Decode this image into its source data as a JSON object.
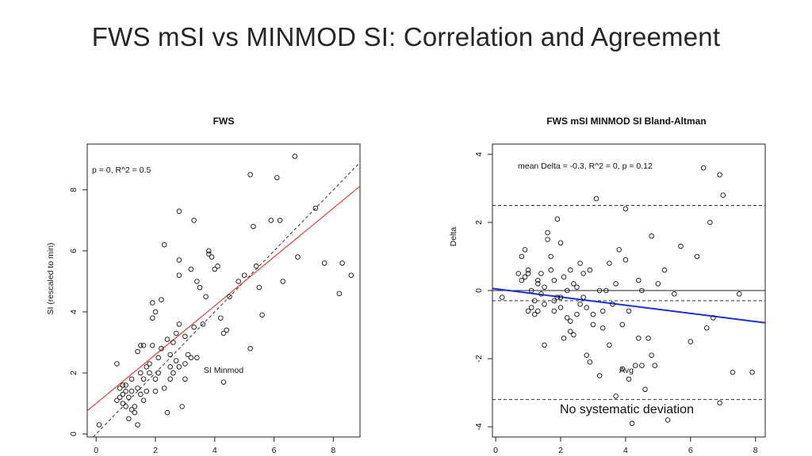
{
  "slide": {
    "title": "FWS mSI vs MINMOD SI: Correlation and Agreement",
    "caption": "No systematic deviation"
  },
  "colors": {
    "regression_line": "#e8413c",
    "identity_line": "#333333",
    "trend_line": "#1f2fd6",
    "points": "#111111"
  },
  "chart_data": [
    {
      "type": "scatter",
      "title": "FWS",
      "xlabel": "SI Minmod",
      "ylabel": "SI (rescaled to min)",
      "annotation": "p = 0, R^2 = 0.5",
      "xlim": [
        -0.3,
        8.9
      ],
      "ylim": [
        -0.1,
        9.5
      ],
      "xticks": [
        "0",
        "2",
        "4",
        "6",
        "8"
      ],
      "yticks": [
        "0",
        "2",
        "4",
        "6",
        "8"
      ],
      "regression_line": {
        "intercept": 1.0,
        "slope": 0.8
      },
      "identity_line": {
        "intercept": 0,
        "slope": 1
      },
      "points": [
        [
          0.1,
          0.3
        ],
        [
          0.7,
          2.3
        ],
        [
          0.7,
          1.1
        ],
        [
          0.8,
          1.2
        ],
        [
          0.8,
          1.5
        ],
        [
          0.9,
          1.3
        ],
        [
          0.9,
          1.0
        ],
        [
          1.0,
          1.4
        ],
        [
          1.0,
          1.6
        ],
        [
          0.9,
          1.6
        ],
        [
          1.1,
          0.5
        ],
        [
          1.1,
          1.2
        ],
        [
          1.2,
          0.8
        ],
        [
          1.2,
          1.4
        ],
        [
          1.3,
          0.9
        ],
        [
          1.3,
          0.7
        ],
        [
          1.4,
          1.5
        ],
        [
          1.4,
          2.7
        ],
        [
          1.4,
          0.3
        ],
        [
          1.5,
          2.9
        ],
        [
          1.5,
          1.3
        ],
        [
          1.6,
          1.8
        ],
        [
          1.6,
          2.9
        ],
        [
          1.6,
          1.1
        ],
        [
          1.7,
          1.4
        ],
        [
          1.7,
          2.2
        ],
        [
          1.8,
          2.0
        ],
        [
          1.8,
          2.3
        ],
        [
          1.9,
          3.8
        ],
        [
          1.9,
          4.3
        ],
        [
          1.9,
          2.9
        ],
        [
          2.0,
          4.0
        ],
        [
          2.0,
          1.4
        ],
        [
          2.1,
          2.5
        ],
        [
          2.1,
          2.0
        ],
        [
          2.2,
          2.8
        ],
        [
          2.2,
          4.4
        ],
        [
          2.3,
          6.2
        ],
        [
          2.3,
          1.5
        ],
        [
          2.4,
          3.1
        ],
        [
          2.4,
          0.7
        ],
        [
          2.5,
          2.2
        ],
        [
          2.5,
          1.8
        ],
        [
          2.6,
          3.0
        ],
        [
          2.7,
          3.3
        ],
        [
          2.7,
          2.4
        ],
        [
          2.8,
          5.2
        ],
        [
          2.8,
          5.7
        ],
        [
          2.8,
          3.6
        ],
        [
          2.8,
          7.3
        ],
        [
          2.9,
          0.9
        ],
        [
          3.0,
          2.3
        ],
        [
          3.0,
          3.2
        ],
        [
          3.1,
          2.6
        ],
        [
          3.2,
          2.5
        ],
        [
          3.2,
          5.4
        ],
        [
          3.3,
          3.5
        ],
        [
          3.3,
          7.0
        ],
        [
          3.4,
          5.0
        ],
        [
          3.4,
          2.5
        ],
        [
          3.5,
          4.8
        ],
        [
          3.6,
          3.6
        ],
        [
          3.7,
          4.5
        ],
        [
          3.8,
          5.9
        ],
        [
          3.8,
          6.0
        ],
        [
          3.9,
          5.8
        ],
        [
          4.0,
          5.4
        ],
        [
          4.1,
          5.5
        ],
        [
          4.2,
          3.8
        ],
        [
          4.3,
          3.3
        ],
        [
          4.3,
          1.7
        ],
        [
          4.4,
          3.4
        ],
        [
          4.5,
          4.5
        ],
        [
          4.8,
          5.0
        ],
        [
          5.0,
          5.2
        ],
        [
          5.2,
          8.5
        ],
        [
          5.3,
          6.8
        ],
        [
          5.4,
          5.5
        ],
        [
          5.5,
          4.8
        ],
        [
          5.6,
          3.9
        ],
        [
          5.2,
          2.8
        ],
        [
          5.9,
          7.0
        ],
        [
          6.1,
          8.4
        ],
        [
          6.2,
          7.0
        ],
        [
          6.3,
          5.0
        ],
        [
          6.7,
          9.1
        ],
        [
          6.8,
          5.8
        ],
        [
          7.4,
          7.4
        ],
        [
          7.7,
          5.6
        ],
        [
          8.2,
          4.6
        ],
        [
          8.3,
          5.6
        ],
        [
          8.6,
          5.2
        ],
        [
          2.0,
          1.8
        ],
        [
          1.5,
          2.0
        ],
        [
          2.6,
          2.0
        ],
        [
          3.0,
          1.8
        ],
        [
          1.0,
          0.9
        ],
        [
          1.2,
          1.8
        ],
        [
          2.5,
          2.6
        ],
        [
          2.8,
          2.2
        ]
      ]
    },
    {
      "type": "scatter",
      "title": "FWS mSI MINMOD SI Bland-Altman",
      "xlabel": "Avg",
      "ylabel": "Delta",
      "annotation": "mean Delta = -0.3, R^2 = 0, p = 0.12",
      "xlim": [
        -0.1,
        8.3
      ],
      "ylim": [
        -4.3,
        4.3
      ],
      "xticks": [
        "0",
        "2",
        "4",
        "6",
        "8"
      ],
      "yticks": [
        "-4",
        "-2",
        "0",
        "2",
        "4"
      ],
      "zero_line": 0,
      "mean_delta": -0.3,
      "limits_of_agreement": [
        2.5,
        -3.2
      ],
      "trend_line": {
        "intercept": 0.05,
        "slope": -0.12
      },
      "points": [
        [
          0.2,
          -0.2
        ],
        [
          0.7,
          0.5
        ],
        [
          0.8,
          1.0
        ],
        [
          0.8,
          0.3
        ],
        [
          0.9,
          1.2
        ],
        [
          0.9,
          0.4
        ],
        [
          1.0,
          -0.6
        ],
        [
          1.0,
          0.5
        ],
        [
          1.1,
          -0.5
        ],
        [
          1.1,
          0.0
        ],
        [
          1.2,
          -0.7
        ],
        [
          1.2,
          -0.3
        ],
        [
          1.3,
          0.3
        ],
        [
          1.3,
          -0.6
        ],
        [
          1.4,
          -0.1
        ],
        [
          1.4,
          0.5
        ],
        [
          1.5,
          -1.6
        ],
        [
          1.5,
          0.1
        ],
        [
          1.6,
          1.7
        ],
        [
          1.6,
          1.5
        ],
        [
          1.7,
          1.0
        ],
        [
          1.7,
          0.6
        ],
        [
          1.8,
          -0.6
        ],
        [
          1.8,
          0.3
        ],
        [
          1.9,
          -0.2
        ],
        [
          1.9,
          2.1
        ],
        [
          2.0,
          1.4
        ],
        [
          2.0,
          -0.5
        ],
        [
          2.1,
          -1.4
        ],
        [
          2.1,
          0.4
        ],
        [
          2.2,
          -0.8
        ],
        [
          2.2,
          0.0
        ],
        [
          2.3,
          -1.2
        ],
        [
          2.3,
          0.6
        ],
        [
          2.4,
          0.2
        ],
        [
          2.5,
          0.1
        ],
        [
          2.5,
          -0.7
        ],
        [
          2.6,
          0.8
        ],
        [
          2.6,
          -0.4
        ],
        [
          2.7,
          -0.2
        ],
        [
          2.8,
          -1.9
        ],
        [
          2.8,
          -0.5
        ],
        [
          2.9,
          0.6
        ],
        [
          2.9,
          -2.1
        ],
        [
          3.0,
          -0.7
        ],
        [
          3.1,
          2.7
        ],
        [
          3.2,
          -2.5
        ],
        [
          3.3,
          -1.1
        ],
        [
          3.3,
          -0.6
        ],
        [
          3.4,
          0.0
        ],
        [
          3.5,
          -1.6
        ],
        [
          3.6,
          -0.4
        ],
        [
          3.7,
          0.2
        ],
        [
          3.7,
          -3.1
        ],
        [
          3.8,
          1.2
        ],
        [
          3.9,
          -1.0
        ],
        [
          3.9,
          -2.3
        ],
        [
          4.0,
          2.4
        ],
        [
          4.0,
          0.9
        ],
        [
          4.1,
          -0.6
        ],
        [
          4.1,
          -2.6
        ],
        [
          4.2,
          -3.9
        ],
        [
          4.3,
          -2.2
        ],
        [
          4.4,
          -1.4
        ],
        [
          4.5,
          -2.2
        ],
        [
          4.5,
          0.0
        ],
        [
          4.6,
          -2.9
        ],
        [
          4.7,
          -1.4
        ],
        [
          4.8,
          1.6
        ],
        [
          4.8,
          -1.9
        ],
        [
          4.9,
          -2.2
        ],
        [
          5.0,
          0.2
        ],
        [
          5.2,
          0.6
        ],
        [
          5.3,
          -3.8
        ],
        [
          5.5,
          -0.1
        ],
        [
          5.7,
          1.3
        ],
        [
          6.0,
          -1.5
        ],
        [
          6.2,
          1.0
        ],
        [
          6.4,
          3.6
        ],
        [
          6.5,
          -1.1
        ],
        [
          6.6,
          2.0
        ],
        [
          6.7,
          -0.8
        ],
        [
          6.9,
          3.4
        ],
        [
          7.0,
          2.8
        ],
        [
          6.9,
          -3.3
        ],
        [
          7.3,
          -2.4
        ],
        [
          7.5,
          -0.1
        ],
        [
          7.9,
          -2.4
        ],
        [
          1.0,
          0.6
        ],
        [
          1.3,
          0.2
        ],
        [
          1.8,
          -0.3
        ],
        [
          2.4,
          -1.3
        ],
        [
          3.0,
          -1.0
        ],
        [
          3.5,
          0.8
        ],
        [
          2.7,
          0.5
        ],
        [
          1.5,
          -0.4
        ],
        [
          2.0,
          -0.2
        ],
        [
          4.4,
          0.3
        ],
        [
          3.2,
          0.0
        ],
        [
          2.3,
          -0.9
        ]
      ]
    }
  ]
}
